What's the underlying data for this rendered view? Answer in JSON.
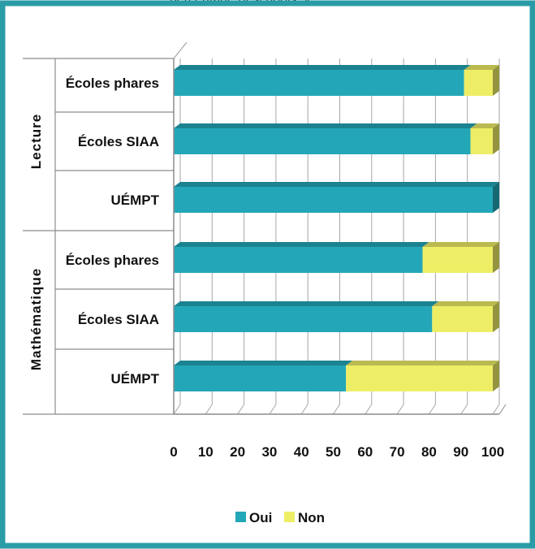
{
  "header_fragment": ", percentage of schools, y",
  "chart_data": {
    "type": "bar",
    "orientation": "horizontal",
    "stacked": true,
    "groups": [
      {
        "name": "Lecture",
        "categories": [
          "Écoles phares",
          "Écoles SIAA",
          "UÉMPT"
        ]
      },
      {
        "name": "Mathématique",
        "categories": [
          "Écoles phares",
          "Écoles SIAA",
          "UÉMPT"
        ]
      }
    ],
    "series": [
      {
        "name": "Oui",
        "color": "#23a7b8",
        "values": [
          91,
          93,
          100,
          78,
          81,
          54
        ]
      },
      {
        "name": "Non",
        "color": "#eeee66",
        "values": [
          9,
          7,
          0,
          22,
          19,
          46
        ]
      }
    ],
    "xlim": [
      0,
      100
    ],
    "xticks": [
      "0",
      "10",
      "20",
      "30",
      "40",
      "50",
      "60",
      "70",
      "80",
      "90",
      "100"
    ],
    "grid": true,
    "legend_position": "bottom",
    "title": "",
    "xlabel": "",
    "ylabel": ""
  }
}
